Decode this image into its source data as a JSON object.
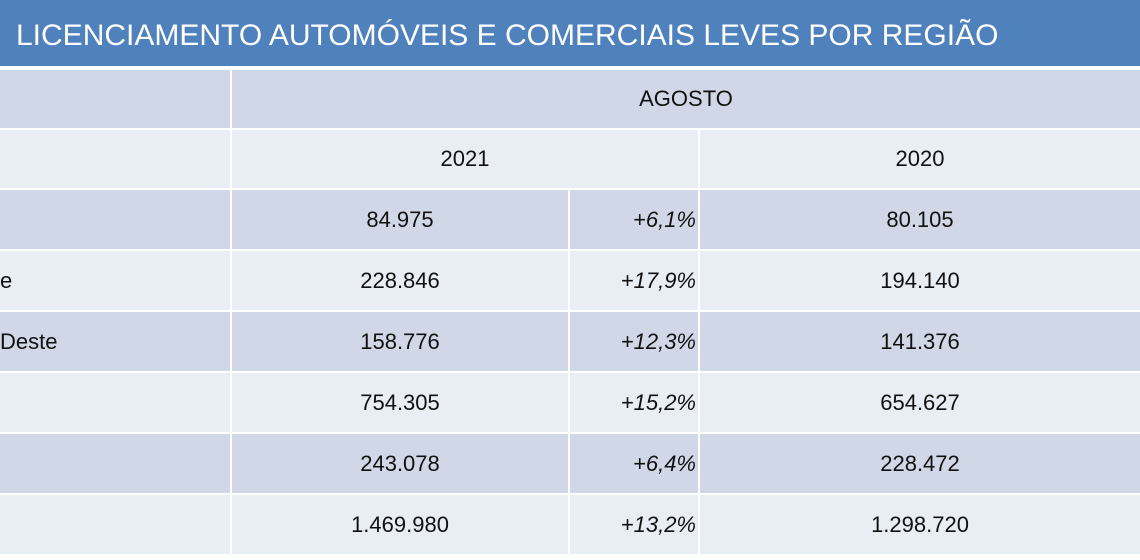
{
  "title": "LICENCIAMENTO AUTOMÓVEIS E COMERCIAIS LEVES POR REGIÃO",
  "header": {
    "period": "AGOSTO",
    "years": [
      "2021",
      "2020"
    ]
  },
  "rows": [
    {
      "current": "84.975",
      "change": "+6,1%",
      "previous": "80.105"
    },
    {
      "label": "e",
      "current": "228.846",
      "change": "+17,9%",
      "previous": "194.140"
    },
    {
      "label": "Deste",
      "current": "158.776",
      "change": "+12,3%",
      "previous": "141.376"
    },
    {
      "current": "754.305",
      "change": "+15,2%",
      "previous": "654.627"
    },
    {
      "current": "243.078",
      "change": "+6,4%",
      "previous": "228.472"
    },
    {
      "current": "1.469.980",
      "change": "+13,2%",
      "previous": "1.298.720"
    }
  ]
}
